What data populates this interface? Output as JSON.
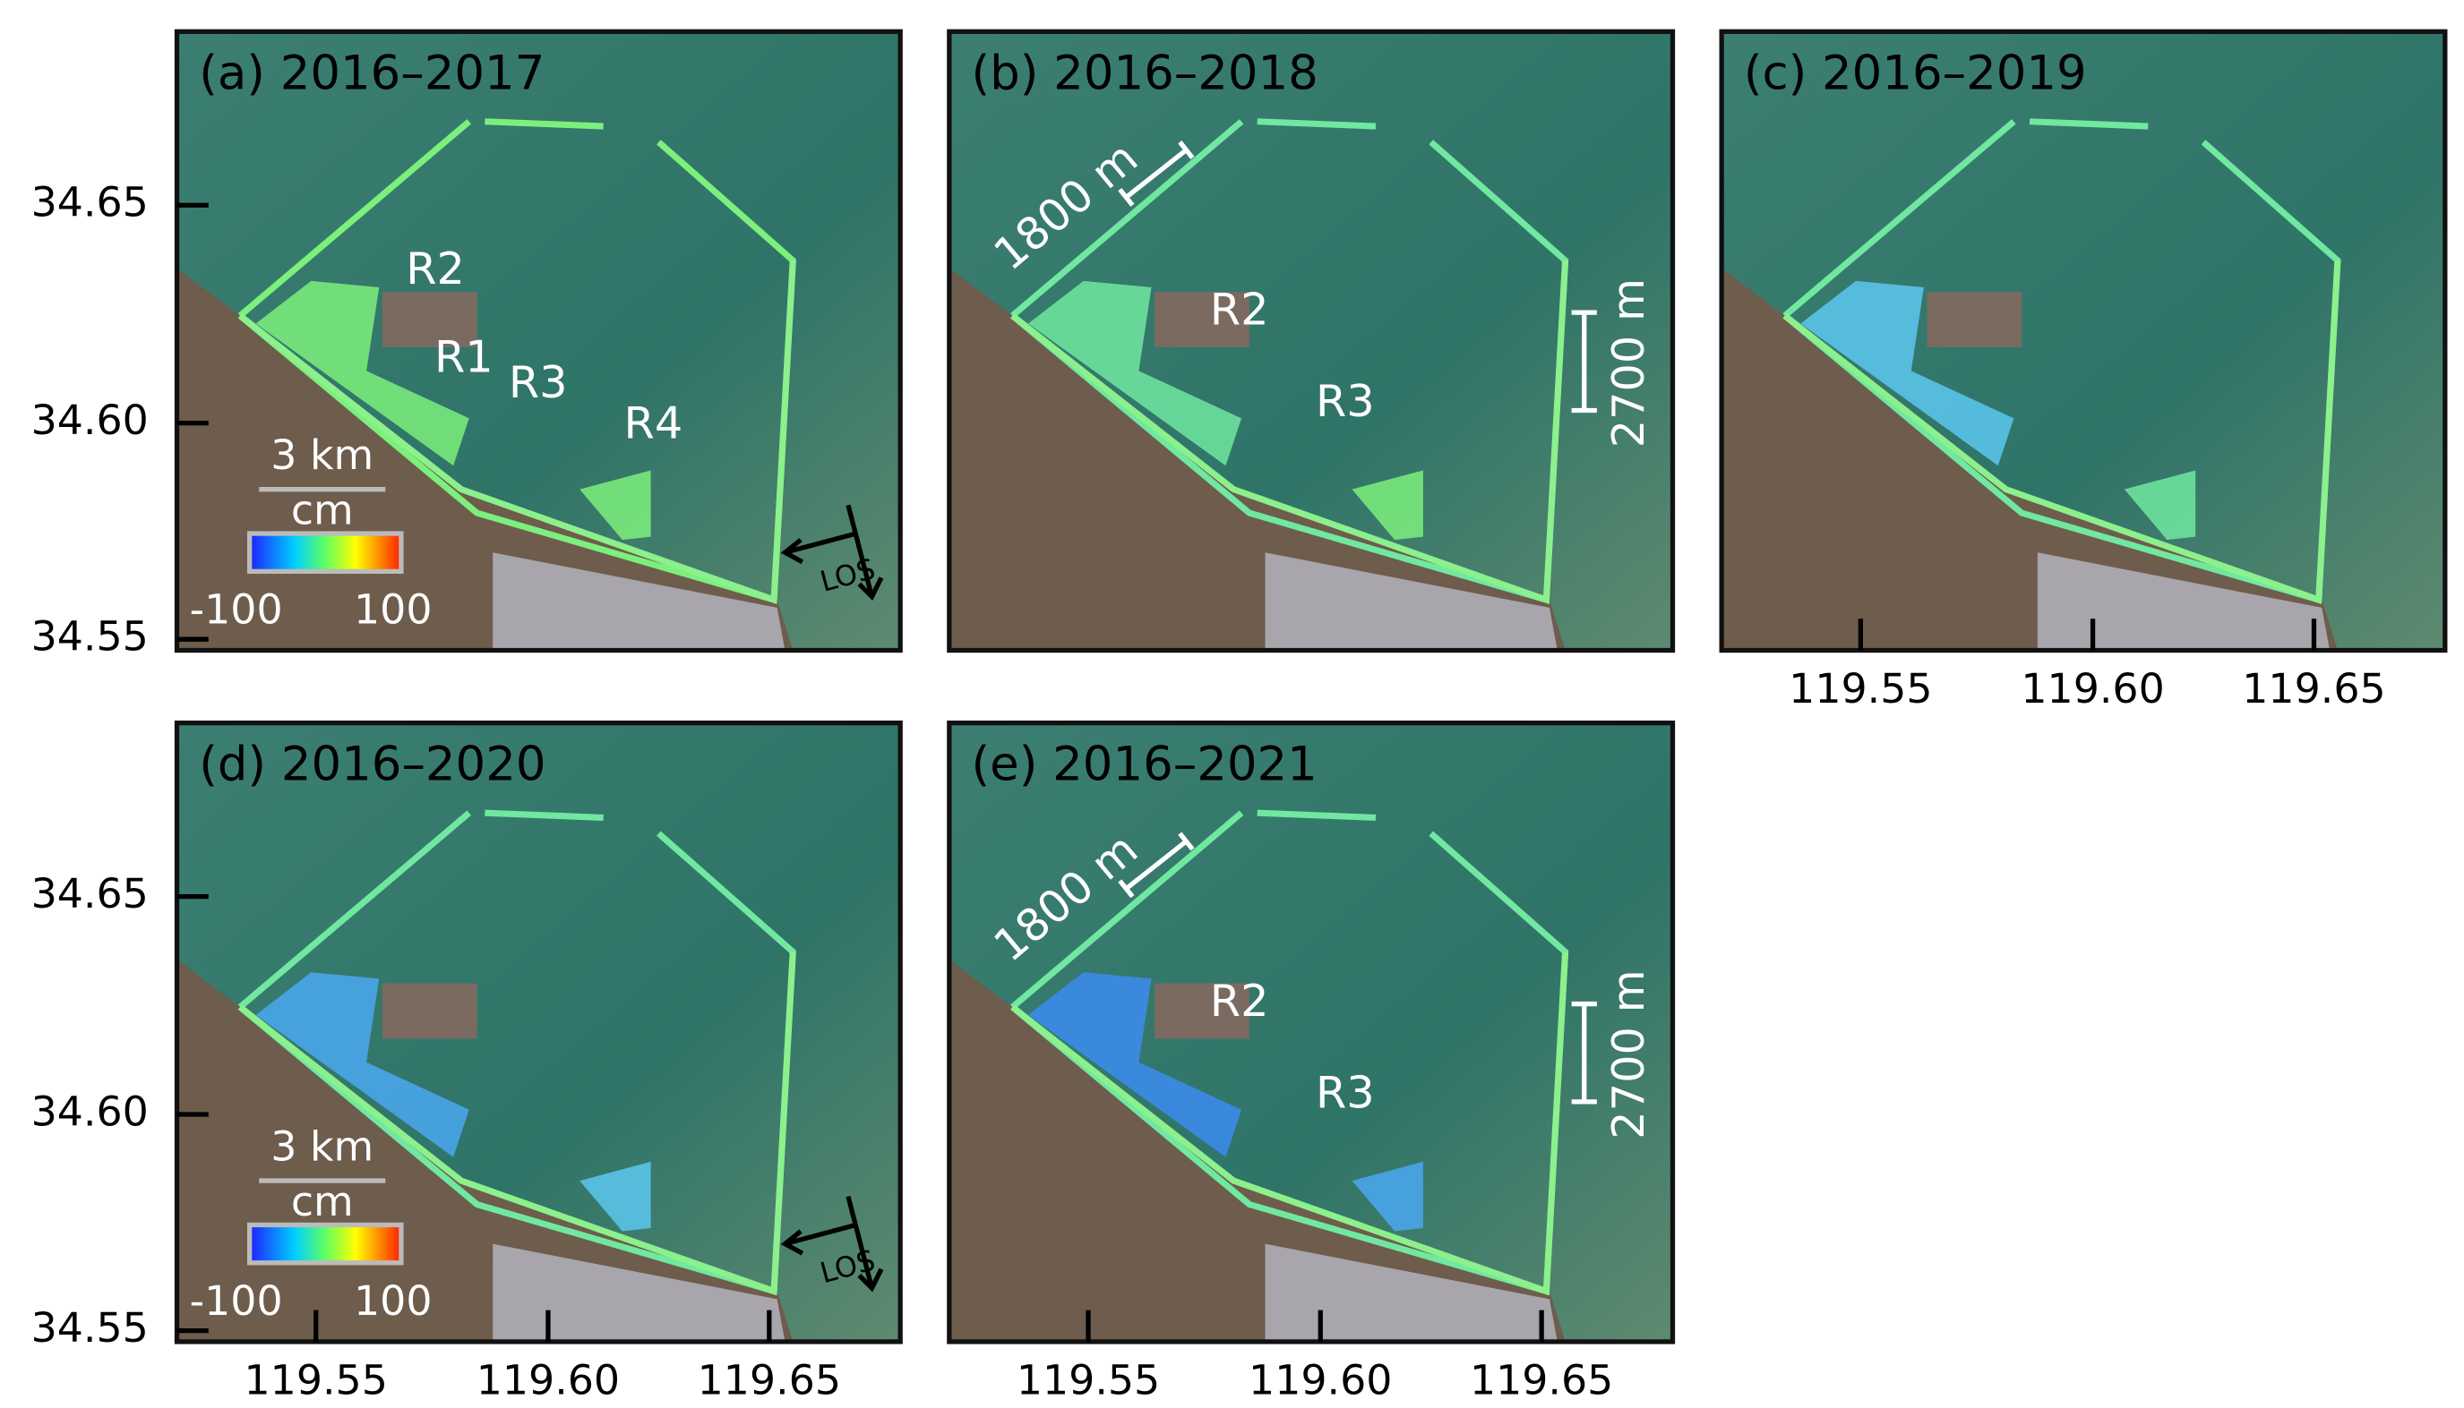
{
  "panels": [
    {
      "title": "(a) 2016–2017",
      "regions": [
        "R2",
        "R1",
        "R3",
        "R4"
      ]
    },
    {
      "title": "(b) 2016–2018",
      "regions": [
        "R2",
        "R3"
      ],
      "scales": [
        "1800 m",
        "2700 m"
      ]
    },
    {
      "title": "(c) 2016–2019"
    },
    {
      "title": "(d) 2016–2020"
    },
    {
      "title": "(e) 2016–2021",
      "regions": [
        "R2",
        "R3"
      ],
      "scales": [
        "1800 m",
        "2700 m"
      ]
    }
  ],
  "legend": {
    "scale": "3 km",
    "unit": "cm",
    "min": "-100",
    "max": "100",
    "los": "LOS"
  },
  "y_ticks": [
    "34.65",
    "34.60",
    "34.55"
  ],
  "x_ticks": [
    "119.55",
    "119.60",
    "119.65"
  ]
}
